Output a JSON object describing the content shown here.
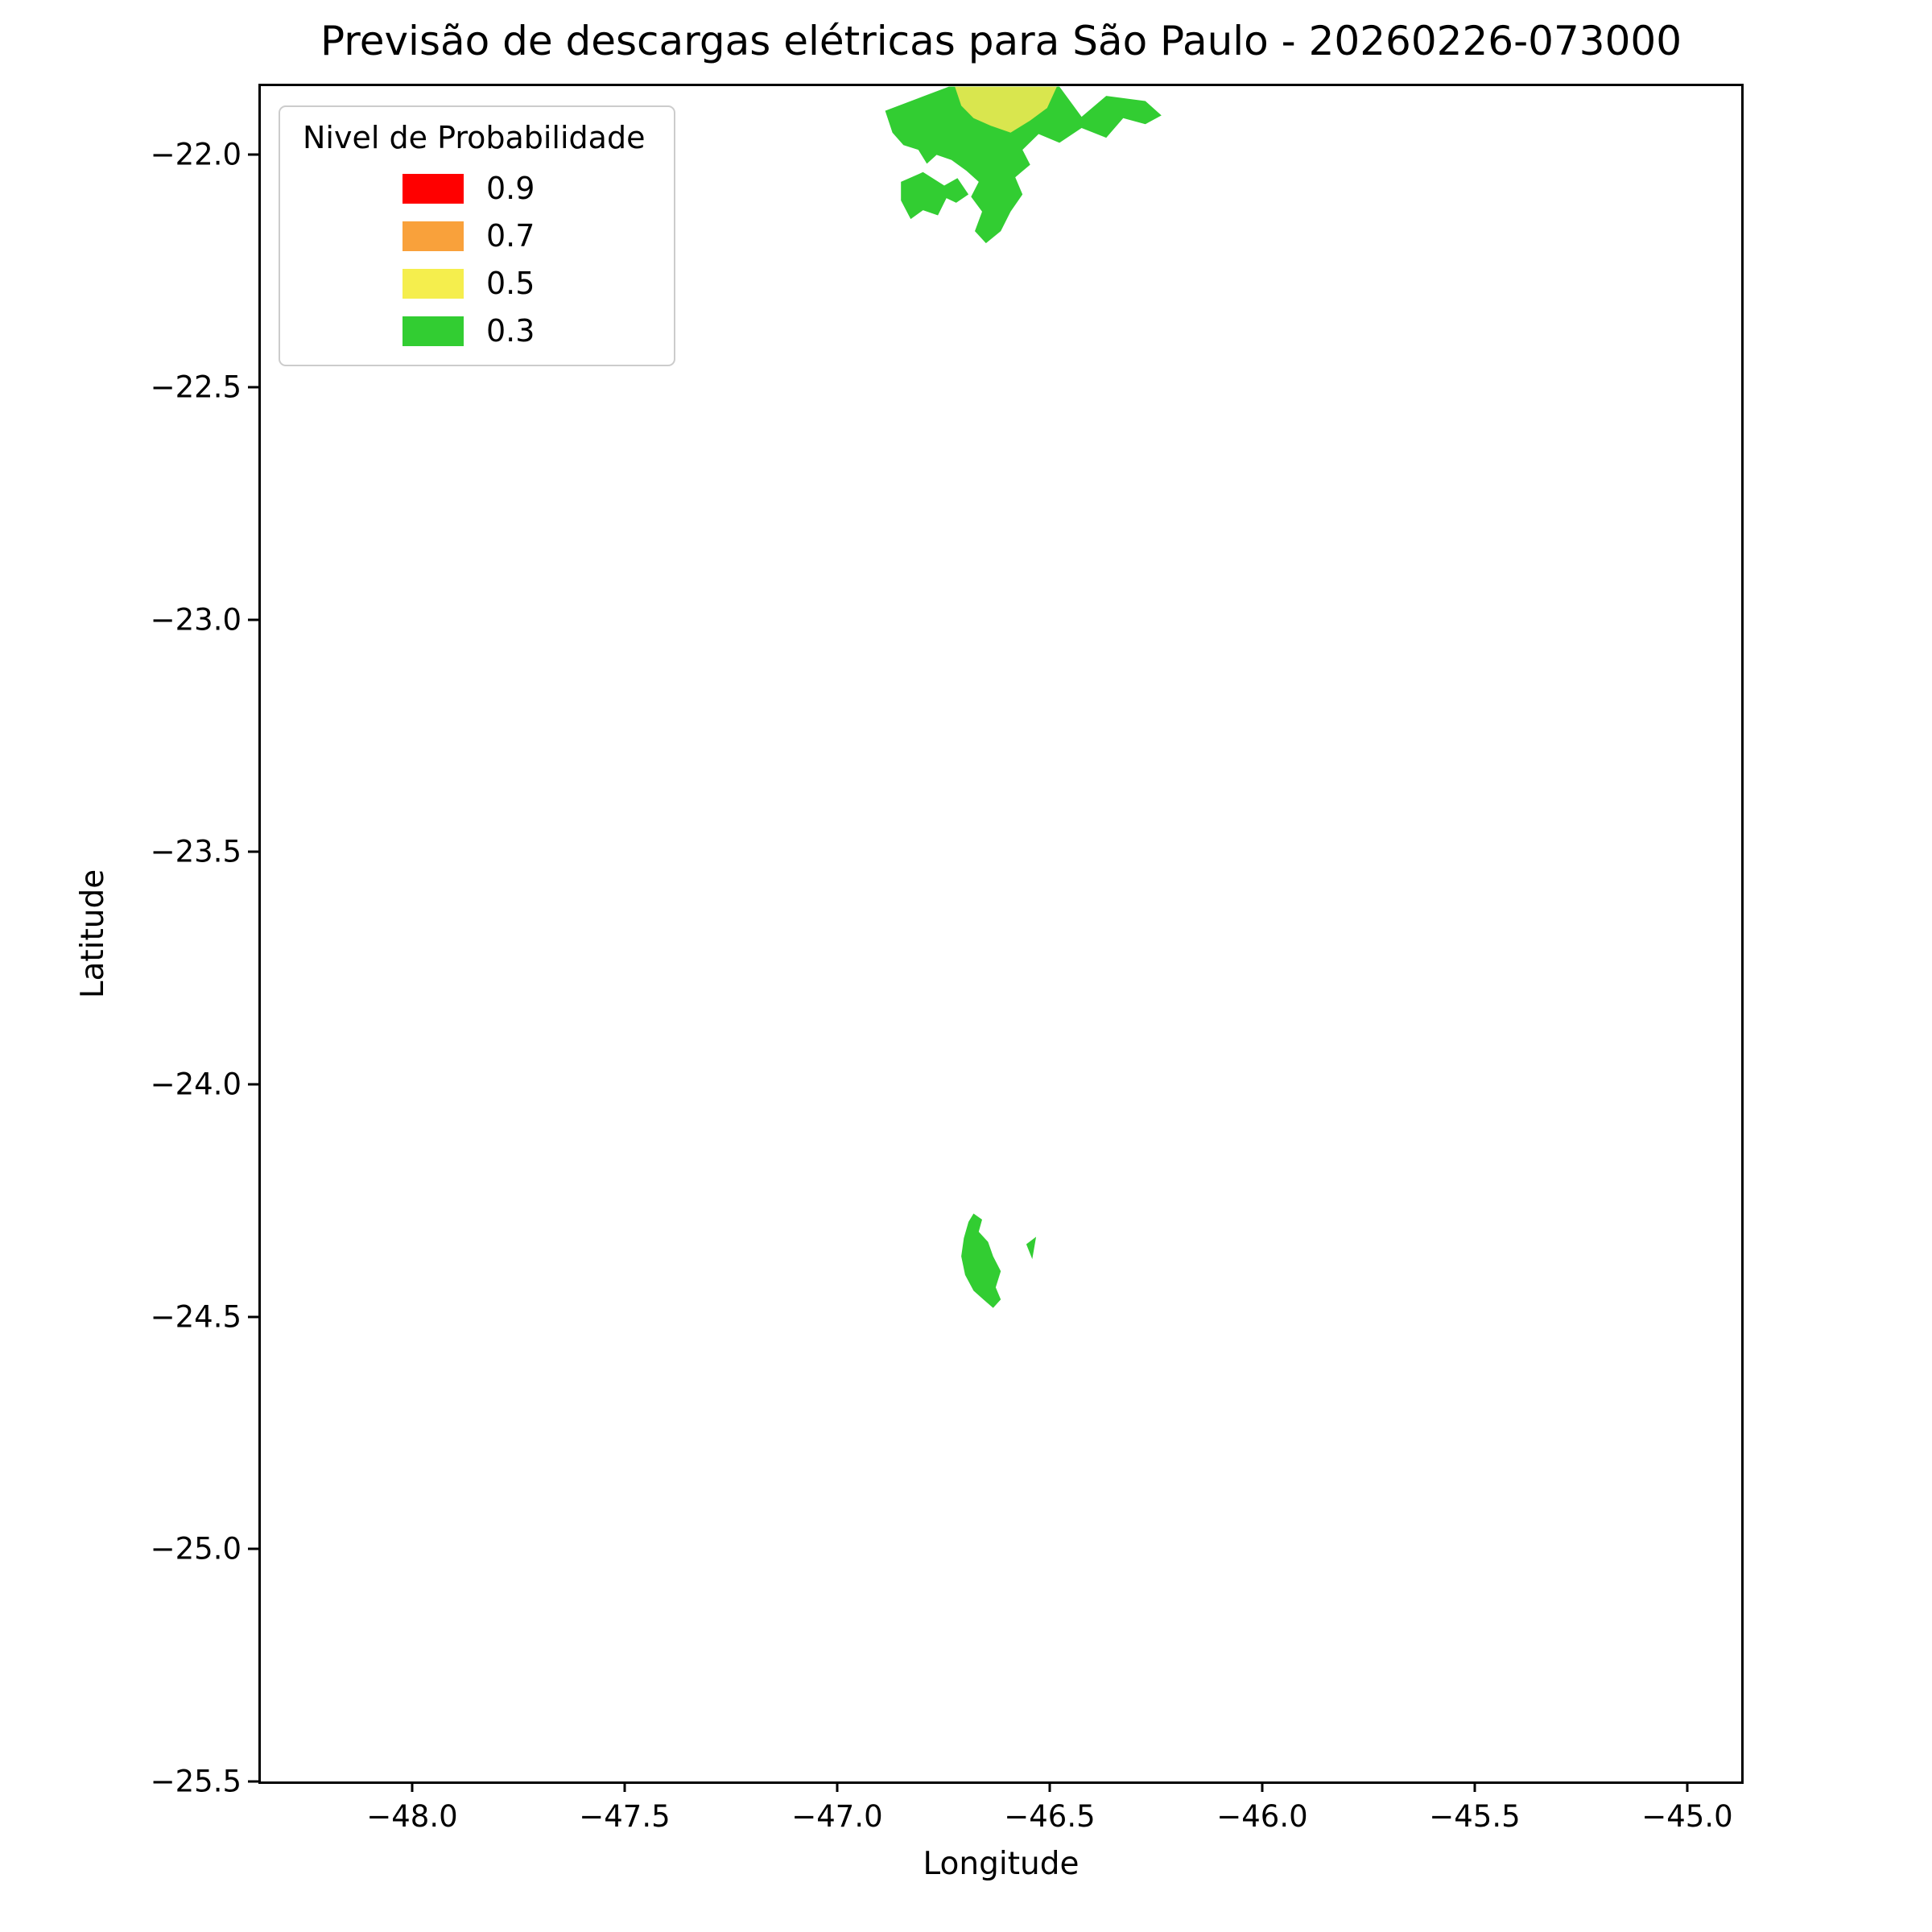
{
  "chart_data": {
    "type": "area",
    "title": "Previsão de descargas elétricas para São Paulo - 20260226-073000",
    "xlabel": "Longitude",
    "ylabel": "Latitude",
    "xlim": [
      -48.356,
      -44.873
    ],
    "ylim": [
      -25.5,
      -21.852
    ],
    "grid": false,
    "background": "#ffffff",
    "xticks": {
      "values": [
        -48.0,
        -47.5,
        -47.0,
        -46.5,
        -46.0,
        -45.5,
        -45.0
      ],
      "labels": [
        "−48.0",
        "−47.5",
        "−47.0",
        "−46.5",
        "−46.0",
        "−45.5",
        "−45.0"
      ]
    },
    "yticks": {
      "values": [
        -22.0,
        -22.5,
        -23.0,
        -23.5,
        -24.0,
        -24.5,
        -25.0,
        -25.5
      ],
      "labels": [
        "−22.0",
        "−22.5",
        "−23.0",
        "−23.5",
        "−24.0",
        "−24.5",
        "−25.0",
        "−25.5"
      ]
    },
    "legend": {
      "title": "Nivel de Probabilidade",
      "position": "upper left",
      "entries": [
        {
          "label": "0.9",
          "color": "#ff0000"
        },
        {
          "label": "0.7",
          "color": "#f9a13b"
        },
        {
          "label": "0.5",
          "color": "#f5ee4d"
        },
        {
          "label": "0.3",
          "color": "#32cd32"
        }
      ]
    },
    "regions": [
      {
        "name": "north-main-green",
        "level": 0.3,
        "color": "#32cd32",
        "points": [
          [
            -46.887,
            -21.905
          ],
          [
            -46.809,
            -21.878
          ],
          [
            -46.737,
            -21.853
          ],
          [
            -46.477,
            -21.853
          ],
          [
            -46.425,
            -21.918
          ],
          [
            -46.367,
            -21.873
          ],
          [
            -46.275,
            -21.884
          ],
          [
            -46.237,
            -21.915
          ],
          [
            -46.275,
            -21.934
          ],
          [
            -46.327,
            -21.921
          ],
          [
            -46.367,
            -21.963
          ],
          [
            -46.425,
            -21.942
          ],
          [
            -46.477,
            -21.974
          ],
          [
            -46.526,
            -21.955
          ],
          [
            -46.564,
            -21.989
          ],
          [
            -46.546,
            -22.021
          ],
          [
            -46.581,
            -22.048
          ],
          [
            -46.564,
            -22.085
          ],
          [
            -46.592,
            -22.122
          ],
          [
            -46.615,
            -22.164
          ],
          [
            -46.65,
            -22.19
          ],
          [
            -46.676,
            -22.164
          ],
          [
            -46.659,
            -22.122
          ],
          [
            -46.685,
            -22.09
          ],
          [
            -46.667,
            -22.058
          ],
          [
            -46.696,
            -22.034
          ],
          [
            -46.731,
            -22.011
          ],
          [
            -46.766,
            -22.0
          ],
          [
            -46.789,
            -22.019
          ],
          [
            -46.809,
            -21.989
          ],
          [
            -46.844,
            -21.979
          ],
          [
            -46.87,
            -21.952
          ]
        ]
      },
      {
        "name": "north-left-green",
        "level": 0.3,
        "color": "#32cd32",
        "points": [
          [
            -46.85,
            -22.058
          ],
          [
            -46.798,
            -22.037
          ],
          [
            -46.748,
            -22.066
          ],
          [
            -46.717,
            -22.05
          ],
          [
            -46.691,
            -22.085
          ],
          [
            -46.72,
            -22.103
          ],
          [
            -46.743,
            -22.093
          ],
          [
            -46.763,
            -22.13
          ],
          [
            -46.798,
            -22.119
          ],
          [
            -46.827,
            -22.138
          ],
          [
            -46.85,
            -22.098
          ]
        ]
      },
      {
        "name": "north-yellow",
        "level": 0.5,
        "color": "#d9e64e",
        "points": [
          [
            -46.723,
            -21.853
          ],
          [
            -46.483,
            -21.853
          ],
          [
            -46.506,
            -21.899
          ],
          [
            -46.546,
            -21.926
          ],
          [
            -46.592,
            -21.952
          ],
          [
            -46.639,
            -21.937
          ],
          [
            -46.679,
            -21.921
          ],
          [
            -46.708,
            -21.894
          ]
        ]
      },
      {
        "name": "south-main-green",
        "level": 0.3,
        "color": "#32cd32",
        "points": [
          [
            -46.679,
            -24.278
          ],
          [
            -46.659,
            -24.291
          ],
          [
            -46.667,
            -24.317
          ],
          [
            -46.645,
            -24.339
          ],
          [
            -46.633,
            -24.37
          ],
          [
            -46.615,
            -24.402
          ],
          [
            -46.627,
            -24.437
          ],
          [
            -46.615,
            -24.463
          ],
          [
            -46.633,
            -24.481
          ],
          [
            -46.656,
            -24.463
          ],
          [
            -46.679,
            -24.444
          ],
          [
            -46.699,
            -24.41
          ],
          [
            -46.708,
            -24.37
          ],
          [
            -46.702,
            -24.331
          ],
          [
            -46.691,
            -24.296
          ]
        ]
      },
      {
        "name": "south-small-green",
        "level": 0.3,
        "color": "#32cd32",
        "points": [
          [
            -46.555,
            -24.344
          ],
          [
            -46.532,
            -24.328
          ],
          [
            -46.541,
            -24.376
          ]
        ]
      }
    ]
  }
}
